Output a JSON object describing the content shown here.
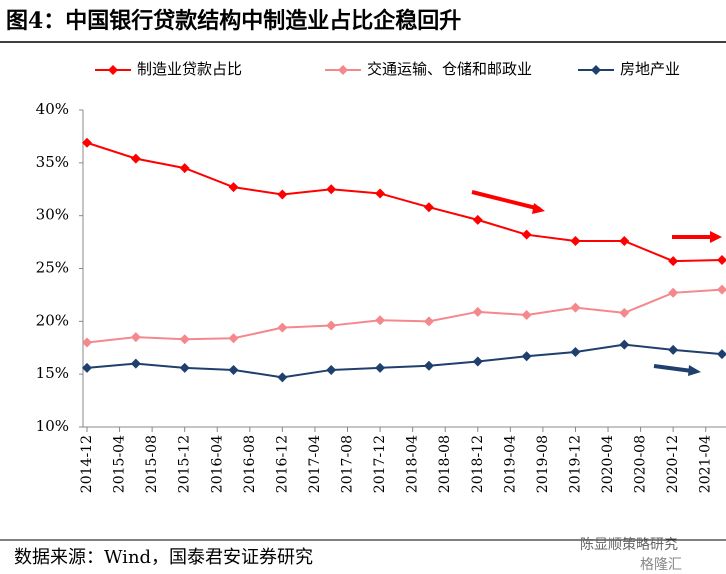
{
  "title": "图4：中国银行贷款结构中制造业占比企稳回升",
  "chart_data": {
    "type": "line",
    "x": [
      "2014-12",
      "2015-06",
      "2015-12",
      "2016-06",
      "2016-12",
      "2017-06",
      "2017-12",
      "2018-06",
      "2018-12",
      "2019-06",
      "2019-12",
      "2020-06",
      "2020-12",
      "2021-06"
    ],
    "xlim": [
      "2014-12",
      "2021-06"
    ],
    "xticks": [
      "2014-12",
      "2015-04",
      "2015-08",
      "2015-12",
      "2016-04",
      "2016-08",
      "2016-12",
      "2017-04",
      "2017-08",
      "2017-12",
      "2018-04",
      "2018-08",
      "2018-12",
      "2019-04",
      "2019-08",
      "2019-12",
      "2020-04",
      "2020-08",
      "2020-12",
      "2021-04"
    ],
    "ylim": [
      10,
      40
    ],
    "yticks": [
      {
        "value": 10,
        "label": "10%"
      },
      {
        "value": 15,
        "label": "15%"
      },
      {
        "value": 20,
        "label": "20%"
      },
      {
        "value": 25,
        "label": "25%"
      },
      {
        "value": 30,
        "label": "30%"
      },
      {
        "value": 35,
        "label": "35%"
      },
      {
        "value": 40,
        "label": "40%"
      }
    ],
    "legend": "top",
    "series": [
      {
        "name": "制造业贷款占比",
        "color": "#ff0000",
        "values": [
          36.9,
          35.4,
          34.5,
          32.7,
          32.0,
          32.5,
          32.1,
          30.8,
          29.6,
          28.2,
          27.6,
          27.6,
          25.7,
          25.8
        ]
      },
      {
        "name": "交通运输、仓储和邮政业",
        "color": "#f4888c",
        "values": [
          18.0,
          18.5,
          18.3,
          18.4,
          19.4,
          19.6,
          20.1,
          20.0,
          20.9,
          20.6,
          21.3,
          20.8,
          22.7,
          23.0
        ]
      },
      {
        "name": "房地产业",
        "color": "#1f3f6e",
        "values": [
          15.6,
          16.0,
          15.6,
          15.4,
          14.7,
          15.4,
          15.6,
          15.8,
          16.2,
          16.7,
          17.1,
          17.8,
          17.3,
          16.9
        ]
      }
    ]
  },
  "source": "数据来源：Wind，国泰君安证券研究",
  "watermark": "陈显顺策略研究",
  "logo": "格隆汇"
}
